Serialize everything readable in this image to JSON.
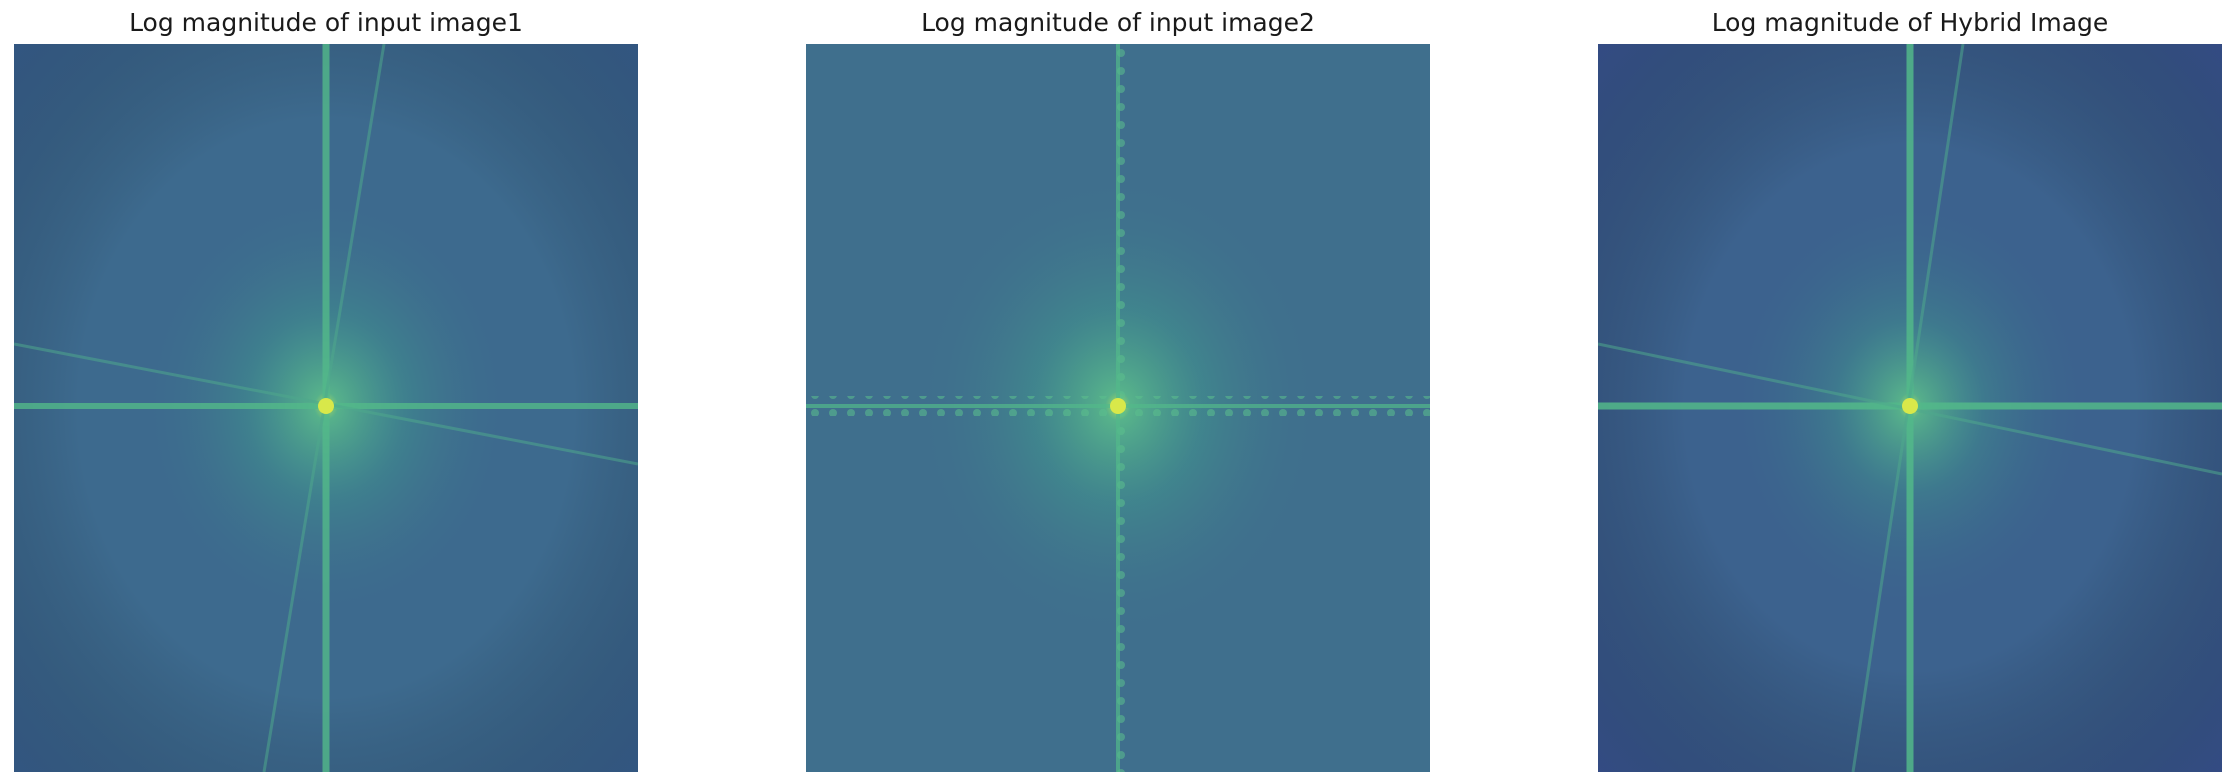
{
  "figure": {
    "panels": [
      {
        "title": "Log magnitude of input image1",
        "image": "log-magnitude-spectrum-input-image1",
        "colormap": "viridis",
        "background_color": "#3b5f8e",
        "glow_color": "#5fc98a",
        "center_color": "#d8e84a",
        "rotated_streaks": true,
        "bright_axes": true
      },
      {
        "title": "Log magnitude of input image2",
        "image": "log-magnitude-spectrum-input-image2",
        "colormap": "viridis",
        "background_color": "#3d6a8c",
        "glow_color": "#5fc98a",
        "center_color": "#d8e84a",
        "rotated_streaks": false,
        "bright_axes": true
      },
      {
        "title": "Log magnitude of Hybrid Image",
        "image": "log-magnitude-spectrum-hybrid-image",
        "colormap": "viridis",
        "background_color": "#3a5b8e",
        "glow_color": "#5fc98a",
        "center_color": "#d8e84a",
        "rotated_streaks": true,
        "bright_axes": true
      }
    ]
  }
}
